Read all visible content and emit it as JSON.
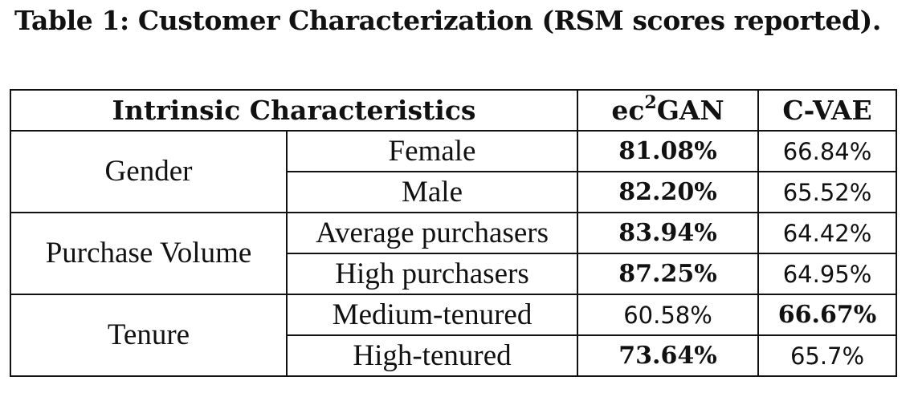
{
  "caption": "Table 1: Customer Characterization (RSM scores reported).",
  "header": {
    "characteristics": "Intrinsic Characteristics",
    "model1_prefix": "ec",
    "model1_sup": "2",
    "model1_suffix": "GAN",
    "model2": "C-VAE"
  },
  "groups": [
    {
      "label": "Gender",
      "rows": [
        {
          "sub": "Female",
          "ec2gan": "81.08%",
          "cvae": "66.84%",
          "best": "ec2gan"
        },
        {
          "sub": "Male",
          "ec2gan": "82.20%",
          "cvae": "65.52%",
          "best": "ec2gan"
        }
      ]
    },
    {
      "label": "Purchase Volume",
      "rows": [
        {
          "sub": "Average purchasers",
          "ec2gan": "83.94%",
          "cvae": "64.42%",
          "best": "ec2gan"
        },
        {
          "sub": "High purchasers",
          "ec2gan": "87.25%",
          "cvae": "64.95%",
          "best": "ec2gan"
        }
      ]
    },
    {
      "label": "Tenure",
      "rows": [
        {
          "sub": "Medium-tenured",
          "ec2gan": "60.58%",
          "cvae": "66.67%",
          "best": "cvae"
        },
        {
          "sub": "High-tenured",
          "ec2gan": "73.64%",
          "cvae": "65.7%",
          "best": "ec2gan"
        }
      ]
    }
  ]
}
